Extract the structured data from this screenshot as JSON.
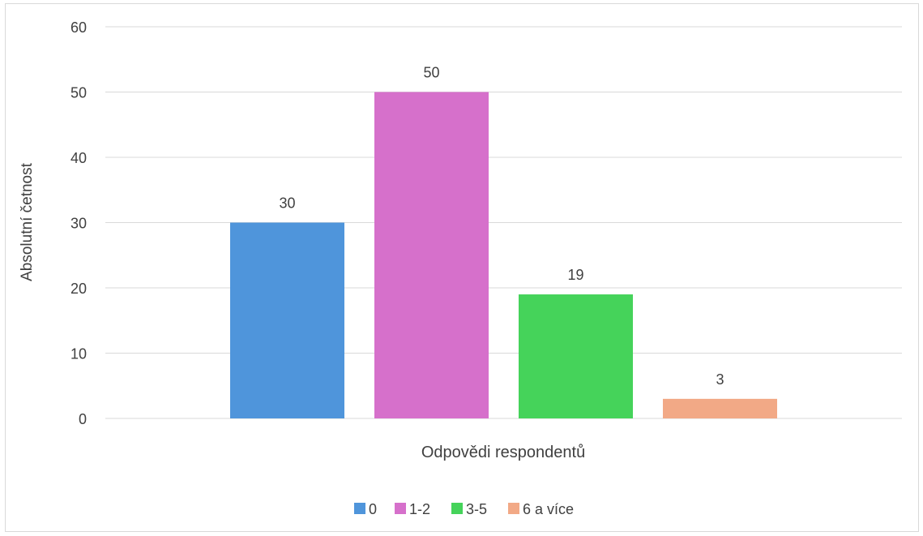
{
  "chart_data": {
    "type": "bar",
    "title": "",
    "xlabel": "Odpovědi respondentů",
    "ylabel": "Absolutní četnost",
    "ylim": [
      0,
      60
    ],
    "yticks": [
      "0",
      "10",
      "20",
      "30",
      "40",
      "50",
      "60"
    ],
    "grid": true,
    "legend_position": "bottom",
    "series": [
      {
        "name": "0",
        "value": 30,
        "label": "30",
        "color": "#4f95db"
      },
      {
        "name": "1-2",
        "value": 50,
        "label": "50",
        "color": "#d670cb"
      },
      {
        "name": "3-5",
        "value": 19,
        "label": "19",
        "color": "#45d35a"
      },
      {
        "name": "6 a více",
        "value": 3,
        "label": "3",
        "color": "#f2a986"
      }
    ]
  }
}
